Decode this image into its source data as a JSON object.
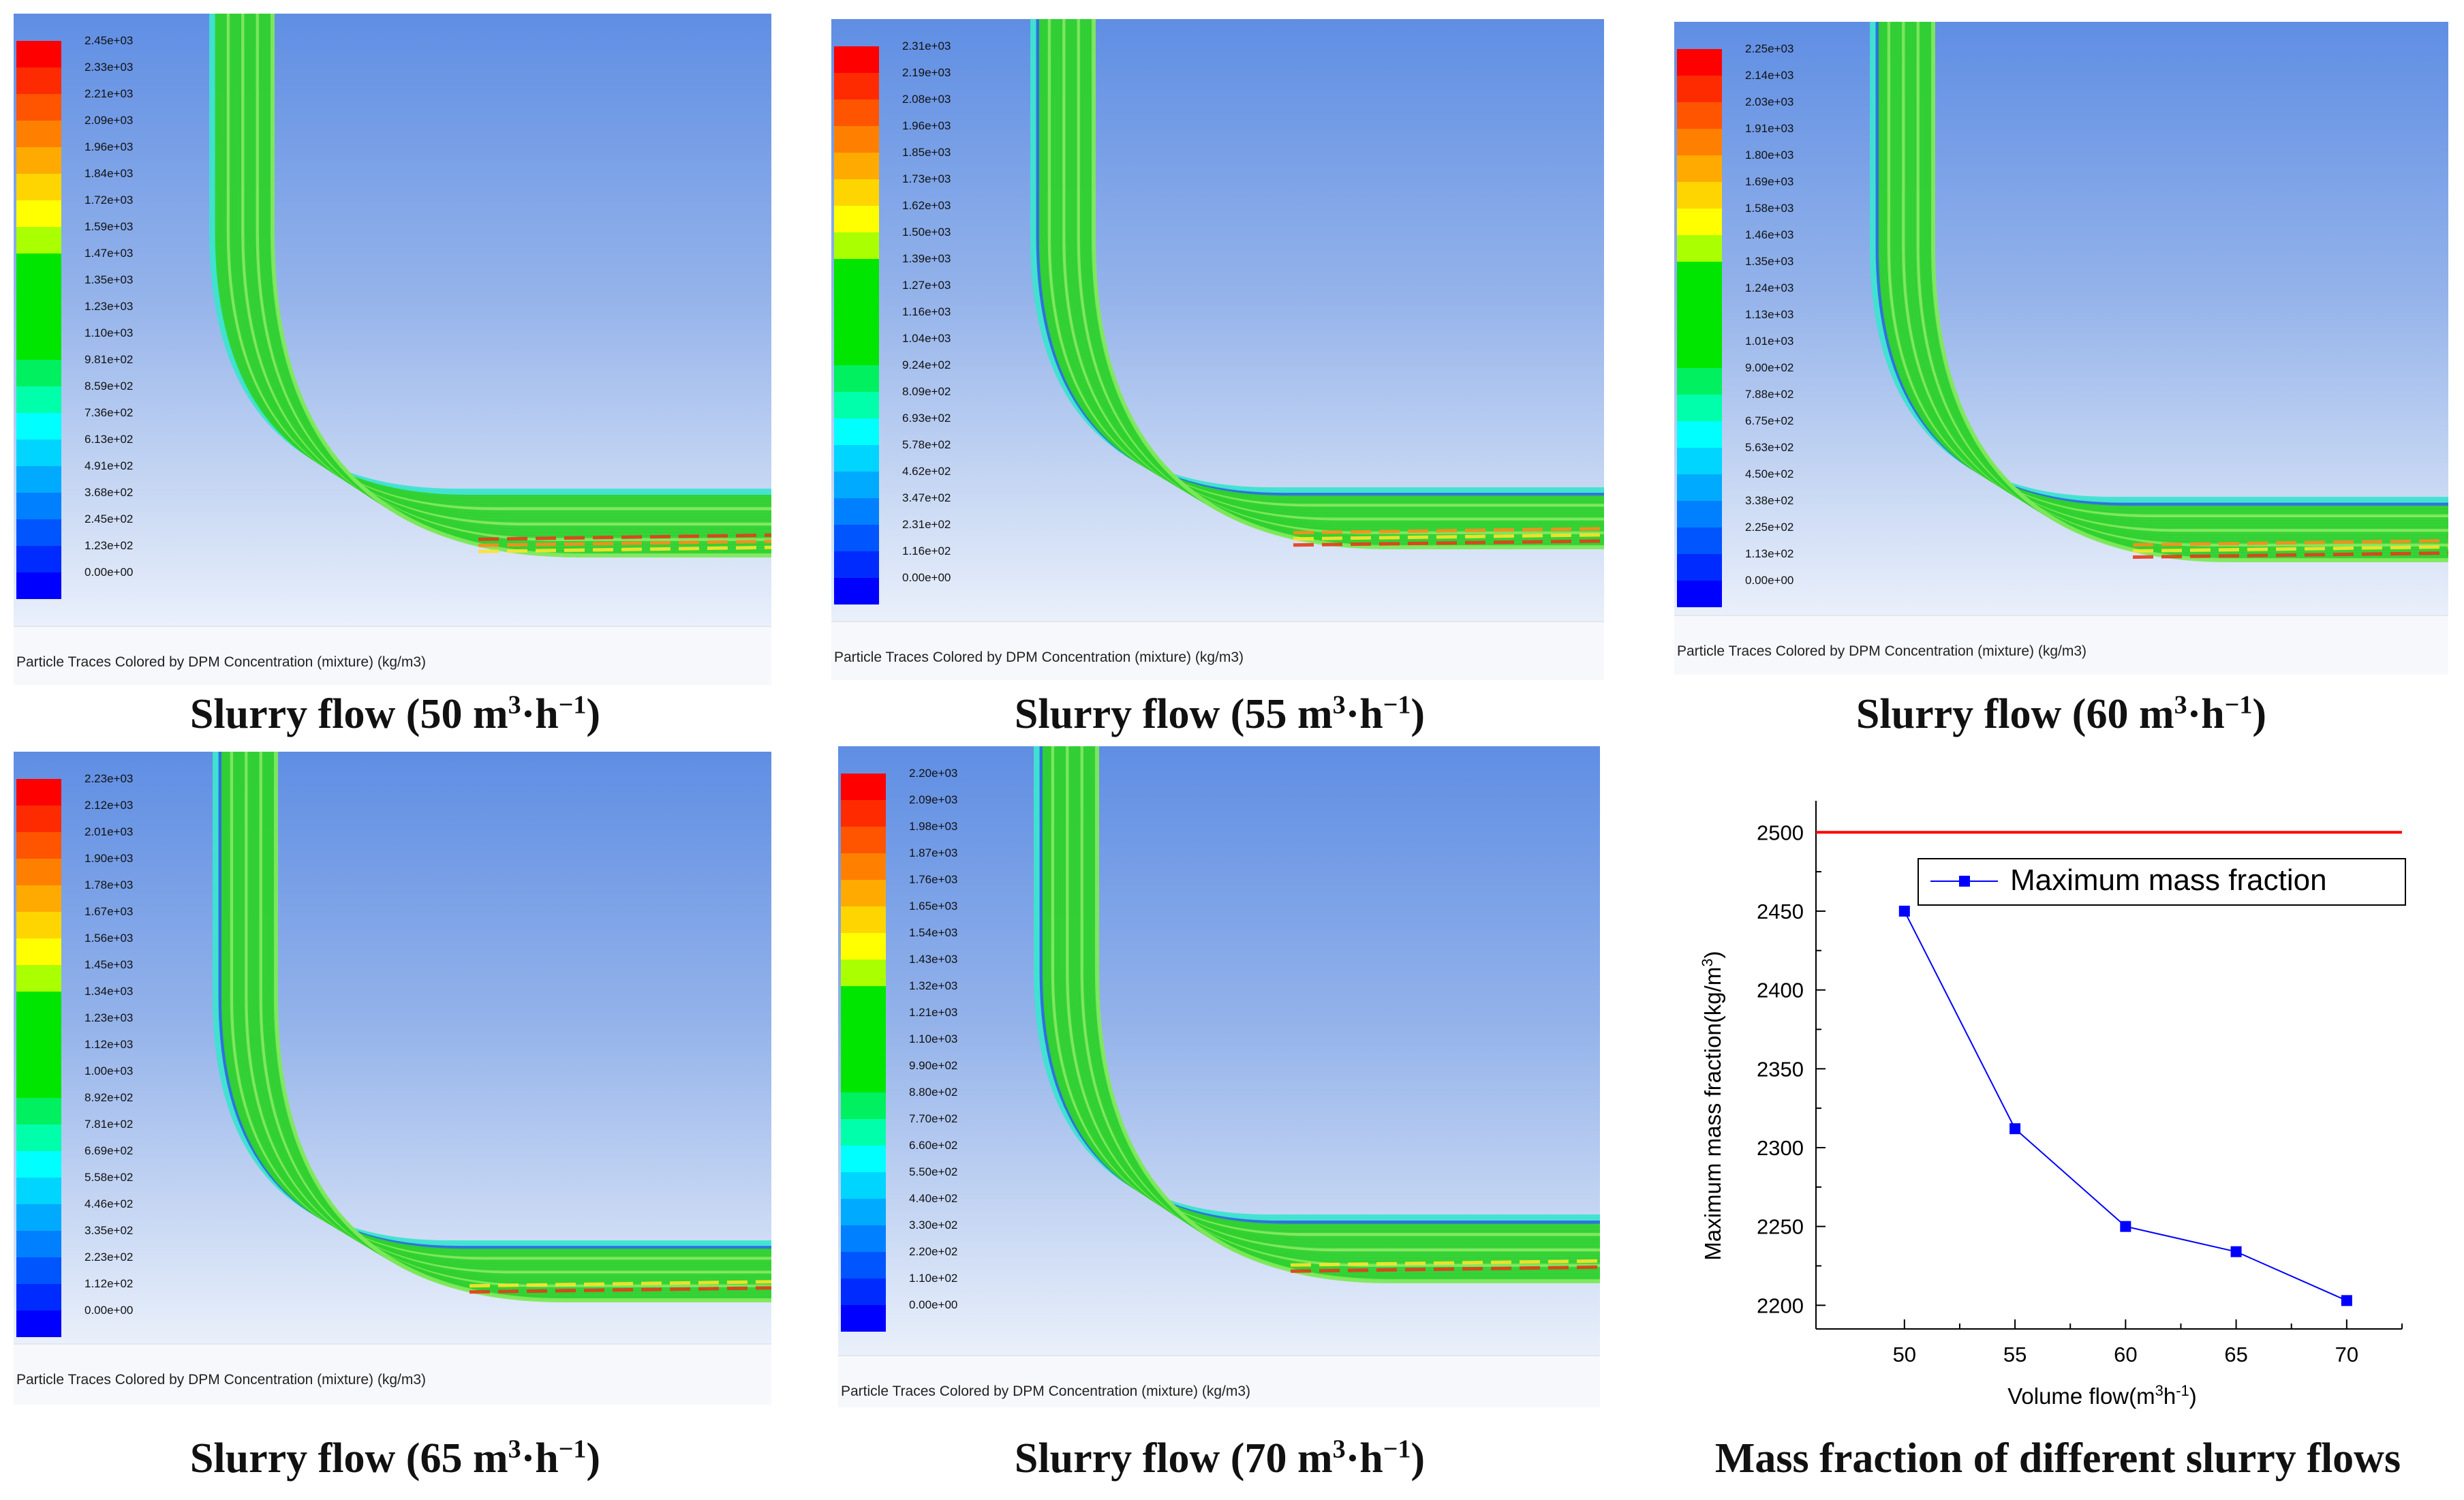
{
  "panels": [
    {
      "caption": "Slurry flow (50 m³·h⁻¹)",
      "caption_parts": {
        "pre": "Slurry flow (50 m",
        "sup1": "3",
        "mid": "·h",
        "sup2": "−1",
        "post": ")"
      },
      "footer": "Particle Traces Colored by DPM Concentration (mixture)  (kg/m3)",
      "colorbar_labels": [
        "2.45e+03",
        "2.33e+03",
        "2.21e+03",
        "2.09e+03",
        "1.96e+03",
        "1.84e+03",
        "1.72e+03",
        "1.59e+03",
        "1.47e+03",
        "1.35e+03",
        "1.23e+03",
        "1.10e+03",
        "9.81e+02",
        "8.59e+02",
        "7.36e+02",
        "6.13e+02",
        "4.91e+02",
        "3.68e+02",
        "2.45e+02",
        "1.23e+02",
        "0.00e+00"
      ]
    },
    {
      "caption": "Slurry flow (55 m³·h⁻¹)",
      "caption_parts": {
        "pre": "Slurry flow (55 m",
        "sup1": "3",
        "mid": "·h",
        "sup2": "−1",
        "post": ")"
      },
      "footer": "Particle Traces Colored by DPM Concentration (mixture)  (kg/m3)",
      "colorbar_labels": [
        "2.31e+03",
        "2.19e+03",
        "2.08e+03",
        "1.96e+03",
        "1.85e+03",
        "1.73e+03",
        "1.62e+03",
        "1.50e+03",
        "1.39e+03",
        "1.27e+03",
        "1.16e+03",
        "1.04e+03",
        "9.24e+02",
        "8.09e+02",
        "6.93e+02",
        "5.78e+02",
        "4.62e+02",
        "3.47e+02",
        "2.31e+02",
        "1.16e+02",
        "0.00e+00"
      ]
    },
    {
      "caption": "Slurry flow (60 m³·h⁻¹)",
      "caption_parts": {
        "pre": "Slurry flow (60 m",
        "sup1": "3",
        "mid": "·h",
        "sup2": "−1",
        "post": ")"
      },
      "footer": "Particle Traces Colored by DPM Concentration (mixture)  (kg/m3)",
      "colorbar_labels": [
        "2.25e+03",
        "2.14e+03",
        "2.03e+03",
        "1.91e+03",
        "1.80e+03",
        "1.69e+03",
        "1.58e+03",
        "1.46e+03",
        "1.35e+03",
        "1.24e+03",
        "1.13e+03",
        "1.01e+03",
        "9.00e+02",
        "7.88e+02",
        "6.75e+02",
        "5.63e+02",
        "4.50e+02",
        "3.38e+02",
        "2.25e+02",
        "1.13e+02",
        "0.00e+00"
      ]
    },
    {
      "caption": "Slurry flow (65 m³·h⁻¹)",
      "caption_parts": {
        "pre": "Slurry flow (65 m",
        "sup1": "3",
        "mid": "·h",
        "sup2": "−1",
        "post": ")"
      },
      "footer": "Particle Traces Colored by DPM Concentration (mixture)  (kg/m3)",
      "colorbar_labels": [
        "2.23e+03",
        "2.12e+03",
        "2.01e+03",
        "1.90e+03",
        "1.78e+03",
        "1.67e+03",
        "1.56e+03",
        "1.45e+03",
        "1.34e+03",
        "1.23e+03",
        "1.12e+03",
        "1.00e+03",
        "8.92e+02",
        "7.81e+02",
        "6.69e+02",
        "5.58e+02",
        "4.46e+02",
        "3.35e+02",
        "2.23e+02",
        "1.12e+02",
        "0.00e+00"
      ]
    },
    {
      "caption": "Slurry flow (70 m³·h⁻¹)",
      "caption_parts": {
        "pre": "Slurry flow (70 m",
        "sup1": "3",
        "mid": "·h",
        "sup2": "−1",
        "post": ")"
      },
      "footer": "Particle Traces Colored by DPM Concentration (mixture)  (kg/m3)",
      "colorbar_labels": [
        "2.20e+03",
        "2.09e+03",
        "1.98e+03",
        "1.87e+03",
        "1.76e+03",
        "1.65e+03",
        "1.54e+03",
        "1.43e+03",
        "1.32e+03",
        "1.21e+03",
        "1.10e+03",
        "9.90e+02",
        "8.80e+02",
        "7.70e+02",
        "6.60e+02",
        "5.50e+02",
        "4.40e+02",
        "3.30e+02",
        "2.20e+02",
        "1.10e+02",
        "0.00e+00"
      ]
    }
  ],
  "colorbar_colors": [
    "#ff0000",
    "#ff2b00",
    "#ff5500",
    "#ff8000",
    "#ffaa00",
    "#ffd500",
    "#ffff00",
    "#aaff00",
    "#00e600",
    "#00e600",
    "#00e600",
    "#00e600",
    "#00f060",
    "#00ffaa",
    "#00ffff",
    "#00d5ff",
    "#00aaff",
    "#0080ff",
    "#0055ff",
    "#002bff",
    "#0000ff"
  ],
  "flow_colors": {
    "main": "#2fd12f",
    "light": "#7ee95a",
    "cyan": "#3fe3d0",
    "blue": "#2a6de0",
    "yellow": "#ffe22a",
    "orange": "#ff8c1a",
    "red": "#e83a1a"
  },
  "chart_data": {
    "type": "line",
    "title": "Mass fraction of different slurry flows",
    "xlabel": "Volume flow(m³h⁻¹)",
    "xlabel_parts": {
      "pre": "Volume flow(m",
      "sup1": "3",
      "mid": "h",
      "sup2": "-1",
      "post": ")"
    },
    "ylabel": "Maximum mass fraction(kg/m³)",
    "ylabel_parts": {
      "pre": "Maximum mass fraction(kg/m",
      "sup": "3",
      "post": ")"
    },
    "x": [
      50,
      55,
      60,
      65,
      70
    ],
    "series": [
      {
        "name": "Maximum mass fraction",
        "values": [
          2450,
          2312,
          2250,
          2234,
          2203
        ],
        "color": "#0000ff"
      }
    ],
    "reference_line": {
      "value": 2500,
      "color": "#ff0000"
    },
    "xticks": [
      50,
      55,
      60,
      65,
      70
    ],
    "yticks": [
      2200,
      2250,
      2300,
      2350,
      2400,
      2450,
      2500
    ],
    "xlim": [
      46,
      72.5
    ],
    "ylim": [
      2185,
      2520
    ],
    "legend_position": "top-right"
  }
}
